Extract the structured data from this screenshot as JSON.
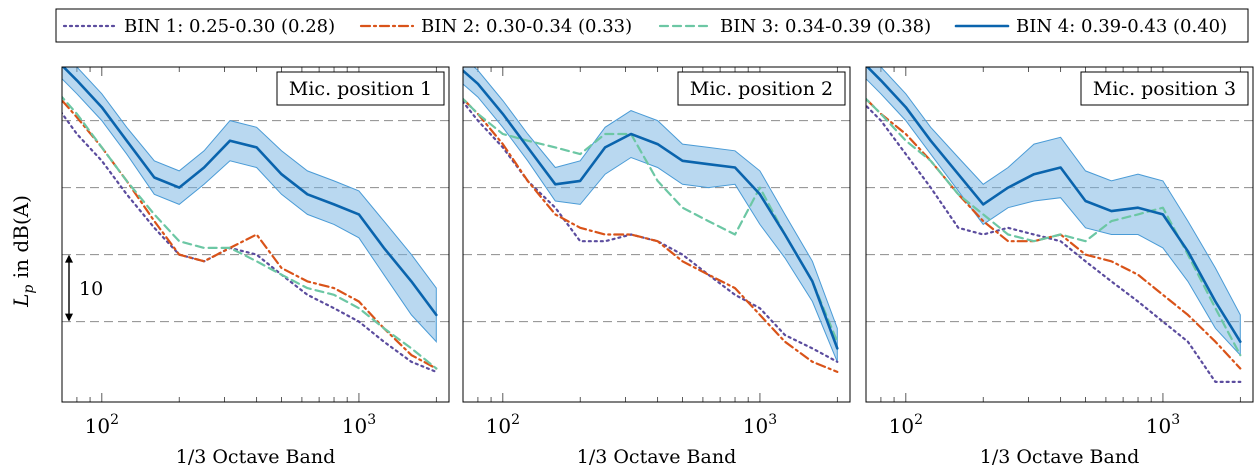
{
  "chart_data": {
    "type": "line",
    "xscale": "log",
    "xlim": [
      70,
      2240
    ],
    "ylim": [
      -22,
      28
    ],
    "grid_y": [
      -10,
      0,
      10,
      20
    ],
    "xticks": [
      {
        "value": 100,
        "label": "10",
        "exp": "2"
      },
      {
        "value": 1000,
        "label": "10",
        "exp": "3"
      }
    ],
    "xlabel": "1/3 Octave Band",
    "ylabel_main": "L",
    "ylabel_sub": "p",
    "ylabel_rest": " in dB(A)",
    "scale_annotation": {
      "label": "10",
      "from": 0,
      "to": -10
    },
    "x": [
      63,
      80,
      100,
      125,
      160,
      200,
      250,
      315,
      400,
      500,
      630,
      800,
      1000,
      1250,
      1600,
      2000
    ],
    "legend": [
      {
        "label": "BIN 1: 0.25-0.30 (0.28)",
        "color": "#5b4c9e",
        "dash": "2 4",
        "width": 2.2,
        "band": false
      },
      {
        "label": "BIN 2: 0.30-0.34 (0.33)",
        "color": "#d95319",
        "dash": "9 4 2 4",
        "width": 2.2,
        "band": false
      },
      {
        "label": "BIN 3: 0.34-0.39 (0.38)",
        "color": "#6cc7a4",
        "dash": "8 5",
        "width": 2.2,
        "band": false
      },
      {
        "label": "BIN 4: 0.39-0.43 (0.40)",
        "color": "#0a64ad",
        "dash": "",
        "width": 2.6,
        "band": true
      }
    ],
    "panels": [
      {
        "title": "Mic. position 1",
        "series": [
          [
            23.5,
            18,
            14,
            9,
            4,
            0,
            -1,
            1,
            0,
            -3,
            -6,
            -8,
            -10,
            -13,
            -16,
            -17.5
          ],
          [
            25,
            20.5,
            16,
            11,
            5,
            0,
            -1,
            1,
            3,
            -2,
            -4,
            -5,
            -7,
            -11,
            -15,
            -17
          ],
          [
            25.5,
            21,
            16,
            11,
            6,
            2,
            1,
            1,
            -1,
            -3,
            -5,
            -6,
            -8,
            -11,
            -14,
            -17
          ],
          [
            30,
            26,
            22,
            17,
            11.5,
            10,
            13,
            17,
            16,
            12,
            9,
            7.5,
            6,
            1,
            -4,
            -9
          ]
        ],
        "band_upper": [
          32,
          28,
          24,
          19,
          14,
          12.5,
          15.5,
          20,
          19,
          15.5,
          12.5,
          11,
          9.5,
          5,
          0,
          -5
        ],
        "band_lower": [
          28,
          24,
          20,
          15,
          9,
          7.5,
          10.5,
          14,
          13,
          9,
          6,
          4.5,
          2.5,
          -3,
          -9,
          -13
        ]
      },
      {
        "title": "Mic. position 2",
        "series": [
          [
            25,
            20,
            16,
            11,
            7,
            2,
            2,
            3,
            2,
            0,
            -3,
            -6,
            -8,
            -12,
            -14,
            -16
          ],
          [
            25,
            21,
            16.5,
            11,
            6,
            4,
            3,
            3,
            2,
            -1,
            -3,
            -5,
            -9,
            -13,
            -16,
            -17.5
          ],
          [
            25,
            21,
            18,
            17,
            16,
            15,
            18,
            18,
            11,
            7,
            5,
            3,
            10,
            3,
            -4,
            -13
          ],
          [
            29,
            25.5,
            21,
            16,
            10.5,
            11,
            16,
            18,
            16.5,
            14,
            13.5,
            13,
            9,
            3,
            -4,
            -14
          ]
        ],
        "band_upper": [
          31,
          27.5,
          23,
          18,
          13,
          14,
          19,
          21.5,
          20,
          16.5,
          16,
          15.5,
          12.5,
          6,
          -1,
          -11
        ],
        "band_lower": [
          27,
          23.5,
          19,
          14,
          8,
          7.5,
          12,
          14.5,
          13,
          10.5,
          10,
          10.5,
          4.5,
          -0.5,
          -7,
          -16
        ]
      },
      {
        "title": "Mic. position 3",
        "series": [
          [
            24,
            20,
            15,
            10,
            4,
            3,
            4,
            3,
            2,
            -1,
            -4,
            -7,
            -10,
            -13,
            -19,
            -19
          ],
          [
            25,
            21,
            18,
            14,
            9,
            5,
            2,
            2,
            3,
            0,
            -1,
            -3,
            -6,
            -9,
            -13,
            -17
          ],
          [
            25,
            21,
            17,
            14,
            9,
            6,
            3,
            2,
            3,
            2,
            5,
            6,
            7,
            0,
            -8,
            -15
          ],
          [
            30,
            26,
            22,
            17,
            12,
            7.5,
            10,
            12,
            13,
            8,
            6.5,
            7,
            6,
            0.5,
            -7,
            -13
          ]
        ],
        "band_upper": [
          32,
          28,
          24,
          19,
          14.5,
          10.5,
          13,
          16.5,
          17.5,
          12.5,
          11,
          12,
          11,
          5,
          -2,
          -9
        ],
        "band_lower": [
          28,
          24,
          20,
          15,
          9.5,
          4.5,
          7,
          8,
          8.5,
          4,
          3,
          3,
          1,
          -4,
          -11,
          -15
        ]
      }
    ]
  }
}
